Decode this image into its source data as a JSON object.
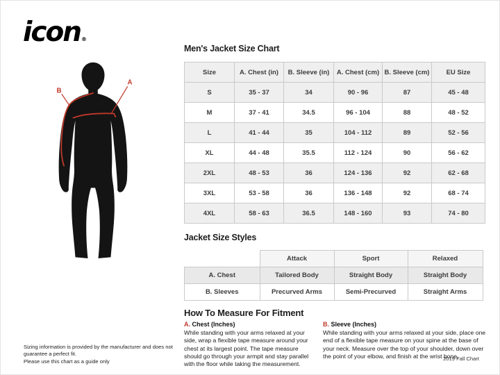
{
  "colors": {
    "accent_red": "#c0392b",
    "silhouette_black": "#141414",
    "table_border": "#c9c9c9",
    "row_shade": "#efefef"
  },
  "logo": {
    "text": "icon",
    "registered": "®"
  },
  "figure": {
    "label_a": "A",
    "label_b": "B"
  },
  "size_chart": {
    "title": "Men's Jacket Size Chart",
    "columns": [
      "Size",
      "A. Chest (in)",
      "B. Sleeve (in)",
      "A. Chest (cm)",
      "B. Sleeve (cm)",
      "EU Size"
    ],
    "rows": [
      [
        "S",
        "35 - 37",
        "34",
        "90 - 96",
        "87",
        "45 - 48"
      ],
      [
        "M",
        "37 - 41",
        "34.5",
        "96 - 104",
        "88",
        "48 - 52"
      ],
      [
        "L",
        "41 - 44",
        "35",
        "104 - 112",
        "89",
        "52 - 56"
      ],
      [
        "XL",
        "44 - 48",
        "35.5",
        "112 - 124",
        "90",
        "56 - 62"
      ],
      [
        "2XL",
        "48 - 53",
        "36",
        "124 - 136",
        "92",
        "62 - 68"
      ],
      [
        "3XL",
        "53 - 58",
        "36",
        "136 - 148",
        "92",
        "68 - 74"
      ],
      [
        "4XL",
        "58 - 63",
        "36.5",
        "148 - 160",
        "93",
        "74 - 80"
      ]
    ]
  },
  "style_chart": {
    "title": "Jacket Size Styles",
    "columns": [
      "",
      "Attack",
      "Sport",
      "Relaxed"
    ],
    "rows": [
      [
        "A. Chest",
        "Tailored Body",
        "Straight Body",
        "Straight Body"
      ],
      [
        "B. Sleeves",
        "Precurved Arms",
        "Semi-Precurved",
        "Straight Arms"
      ]
    ]
  },
  "measure": {
    "title": "How To Measure For Fitment",
    "chest": {
      "letter": "A.",
      "label": "Chest (Inches)",
      "text": "While standing with your arms relaxed at your side, wrap a flexible tape measure around your chest at its largest point. The tape measure should go through your armpit and stay parallel with the floor while taking the measurement."
    },
    "sleeve": {
      "letter": "B.",
      "label": "Sleeve (Inches)",
      "text": "While standing with your arms relaxed at your side, place one end of a flexible tape measure on your spine at the base of your neck. Measure over the top of your shoulder, down over the point of your elbow, and finish at the wrist bone."
    }
  },
  "footer": {
    "disclaimer": "Sizing information is provided by the manufacturer and does not guarantee a perfect fit.\nPlease use this chart as a guide only",
    "chart_version": "2019 Fall Chart"
  }
}
